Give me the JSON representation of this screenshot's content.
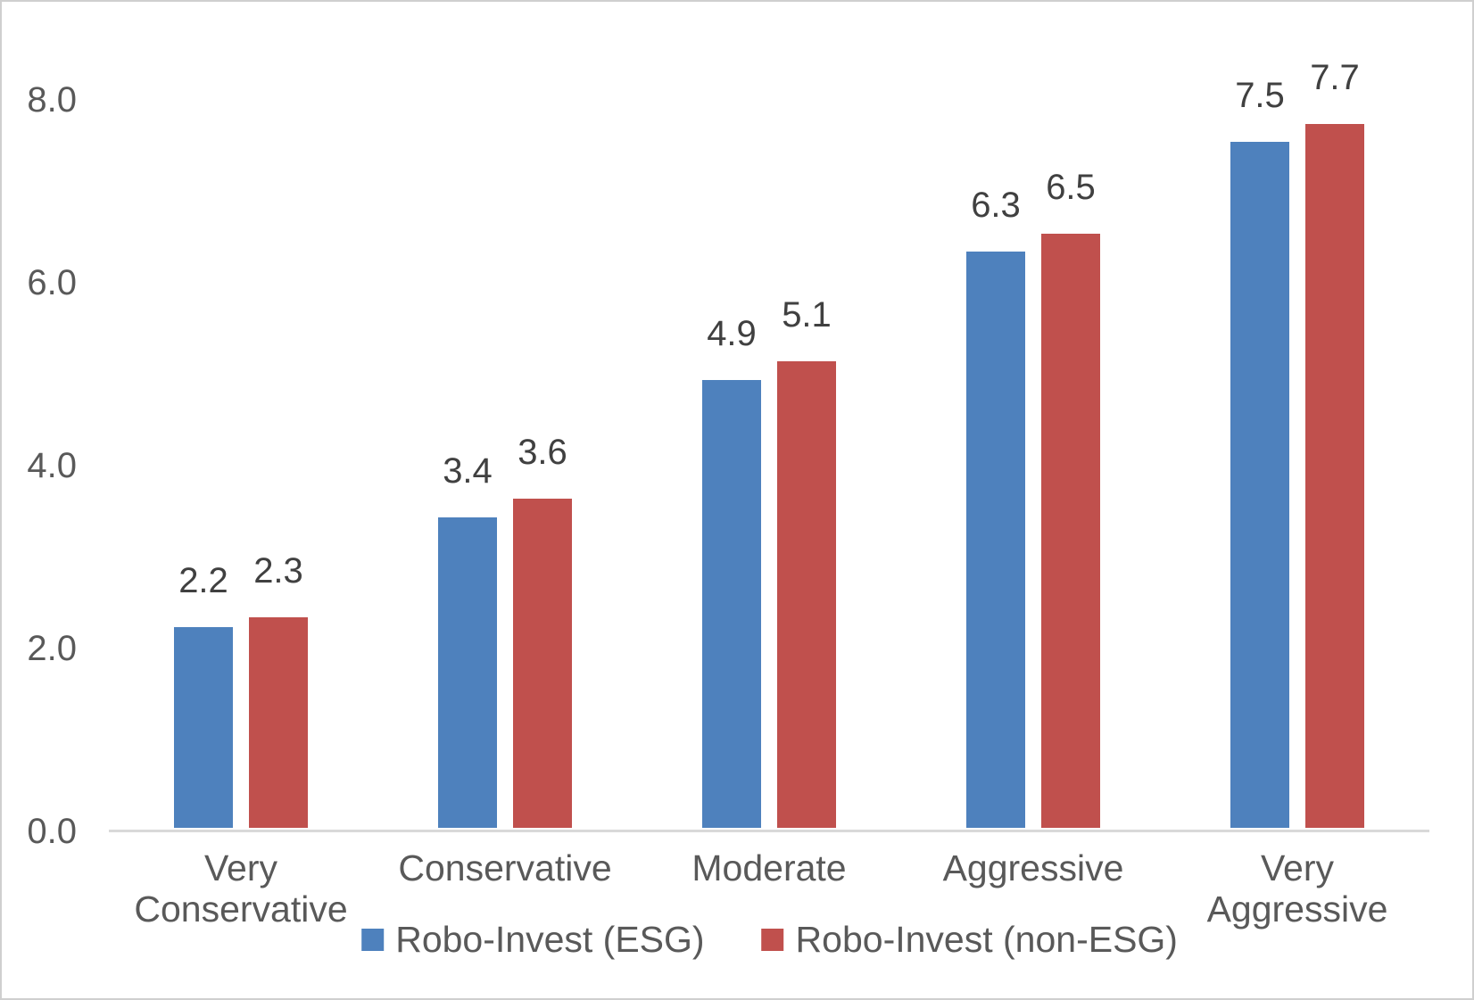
{
  "chart_data": {
    "type": "bar",
    "title": "",
    "xlabel": "",
    "ylabel": "",
    "categories": [
      "Very Conservative",
      "Conservative",
      "Moderate",
      "Aggressive",
      "Very Aggressive"
    ],
    "series": [
      {
        "name": "Robo-Invest (ESG)",
        "color": "#4E81BD",
        "values": [
          2.2,
          3.4,
          4.9,
          6.3,
          7.5
        ]
      },
      {
        "name": "Robo-Invest (non-ESG)",
        "color": "#C0504D",
        "values": [
          2.3,
          3.6,
          5.1,
          6.5,
          7.7
        ]
      }
    ],
    "ytick_labels": [
      "0.0",
      "2.0",
      "4.0",
      "6.0",
      "8.0"
    ],
    "ylim": [
      0,
      8
    ],
    "grid": false,
    "data_labels": true,
    "legend_position": "bottom",
    "colors": {
      "axis_line": "#D9D9D9",
      "tick_text": "#595959",
      "data_label_text": "#404040",
      "frame_border": "#CFCFCF",
      "background": "#FFFFFF"
    }
  }
}
